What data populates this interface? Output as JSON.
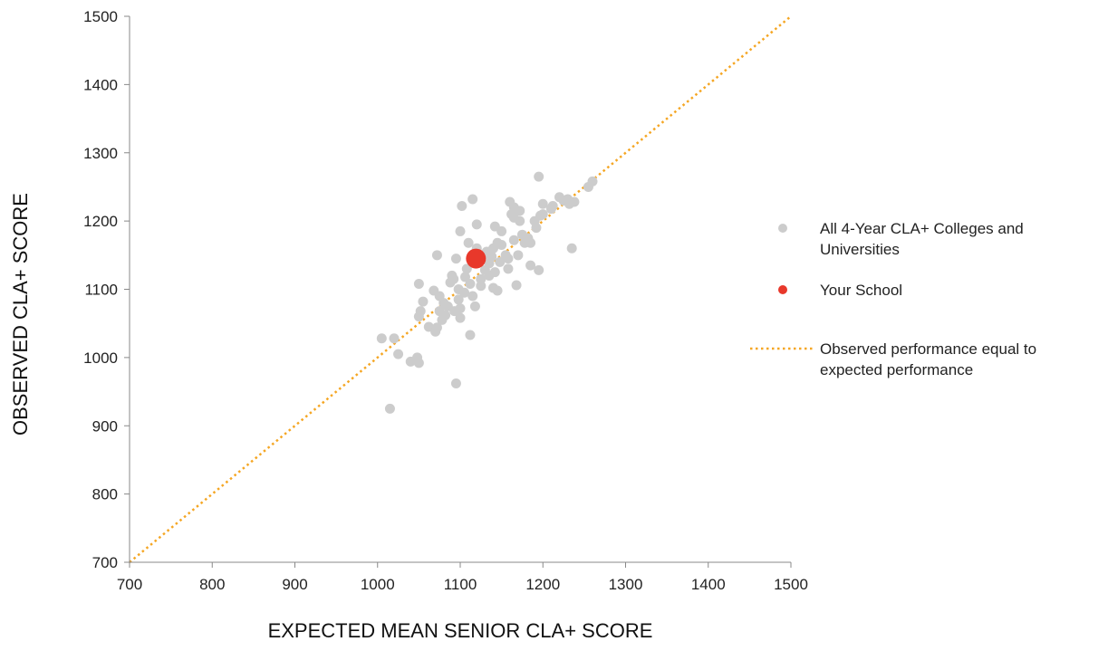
{
  "chart_data": {
    "type": "scatter",
    "xlabel": "EXPECTED MEAN SENIOR CLA+ SCORE",
    "ylabel": "OBSERVED CLA+ SCORE",
    "xlim": [
      700,
      1500
    ],
    "ylim": [
      700,
      1500
    ],
    "x_ticks": [
      "700",
      "800",
      "900",
      "1000",
      "1100",
      "1200",
      "1300",
      "1400",
      "1500"
    ],
    "y_ticks": [
      "700",
      "800",
      "900",
      "1000",
      "1100",
      "1200",
      "1300",
      "1400",
      "1500"
    ],
    "grid": false,
    "legend_position": "right",
    "series": [
      {
        "name": "All 4-Year CLA+ Colleges and Universities",
        "color": "#cccccc",
        "points": [
          [
            1005,
            1028
          ],
          [
            1015,
            925
          ],
          [
            1020,
            1028
          ],
          [
            1025,
            1005
          ],
          [
            1040,
            994
          ],
          [
            1048,
            1000
          ],
          [
            1050,
            992
          ],
          [
            1050,
            1060
          ],
          [
            1050,
            1108
          ],
          [
            1052,
            1068
          ],
          [
            1055,
            1082
          ],
          [
            1062,
            1045
          ],
          [
            1068,
            1098
          ],
          [
            1070,
            1038
          ],
          [
            1072,
            1044
          ],
          [
            1072,
            1150
          ],
          [
            1075,
            1090
          ],
          [
            1075,
            1068
          ],
          [
            1078,
            1055
          ],
          [
            1080,
            1080
          ],
          [
            1082,
            1062
          ],
          [
            1085,
            1075
          ],
          [
            1088,
            1110
          ],
          [
            1090,
            1120
          ],
          [
            1092,
            1115
          ],
          [
            1093,
            1068
          ],
          [
            1095,
            1145
          ],
          [
            1095,
            962
          ],
          [
            1098,
            1100
          ],
          [
            1098,
            1085
          ],
          [
            1100,
            1072
          ],
          [
            1100,
            1058
          ],
          [
            1100,
            1185
          ],
          [
            1102,
            1222
          ],
          [
            1105,
            1095
          ],
          [
            1106,
            1118
          ],
          [
            1108,
            1130
          ],
          [
            1110,
            1168
          ],
          [
            1112,
            1033
          ],
          [
            1112,
            1108
          ],
          [
            1115,
            1232
          ],
          [
            1115,
            1090
          ],
          [
            1118,
            1075
          ],
          [
            1120,
            1195
          ],
          [
            1120,
            1160
          ],
          [
            1122,
            1140
          ],
          [
            1125,
            1115
          ],
          [
            1125,
            1105
          ],
          [
            1128,
            1150
          ],
          [
            1130,
            1128
          ],
          [
            1132,
            1155
          ],
          [
            1135,
            1120
          ],
          [
            1135,
            1138
          ],
          [
            1138,
            1148
          ],
          [
            1140,
            1102
          ],
          [
            1140,
            1160
          ],
          [
            1142,
            1192
          ],
          [
            1142,
            1125
          ],
          [
            1145,
            1168
          ],
          [
            1145,
            1098
          ],
          [
            1148,
            1140
          ],
          [
            1150,
            1185
          ],
          [
            1150,
            1165
          ],
          [
            1155,
            1150
          ],
          [
            1158,
            1145
          ],
          [
            1158,
            1130
          ],
          [
            1160,
            1228
          ],
          [
            1162,
            1210
          ],
          [
            1165,
            1205
          ],
          [
            1165,
            1172
          ],
          [
            1165,
            1220
          ],
          [
            1168,
            1106
          ],
          [
            1170,
            1150
          ],
          [
            1172,
            1200
          ],
          [
            1172,
            1215
          ],
          [
            1175,
            1180
          ],
          [
            1178,
            1168
          ],
          [
            1180,
            1172
          ],
          [
            1182,
            1175
          ],
          [
            1185,
            1135
          ],
          [
            1185,
            1168
          ],
          [
            1190,
            1200
          ],
          [
            1192,
            1190
          ],
          [
            1195,
            1265
          ],
          [
            1195,
            1128
          ],
          [
            1197,
            1208
          ],
          [
            1200,
            1225
          ],
          [
            1200,
            1210
          ],
          [
            1210,
            1218
          ],
          [
            1212,
            1222
          ],
          [
            1220,
            1235
          ],
          [
            1225,
            1230
          ],
          [
            1230,
            1232
          ],
          [
            1232,
            1225
          ],
          [
            1235,
            1160
          ],
          [
            1238,
            1228
          ],
          [
            1255,
            1250
          ],
          [
            1260,
            1258
          ]
        ]
      },
      {
        "name": "Your School",
        "color": "#e8382b",
        "points": [
          [
            1119,
            1145
          ]
        ]
      }
    ],
    "reference_line": {
      "name": "Observed performance equal to expected performance",
      "color": "#f5a623",
      "from": [
        700,
        700
      ],
      "to": [
        1500,
        1500
      ]
    }
  }
}
